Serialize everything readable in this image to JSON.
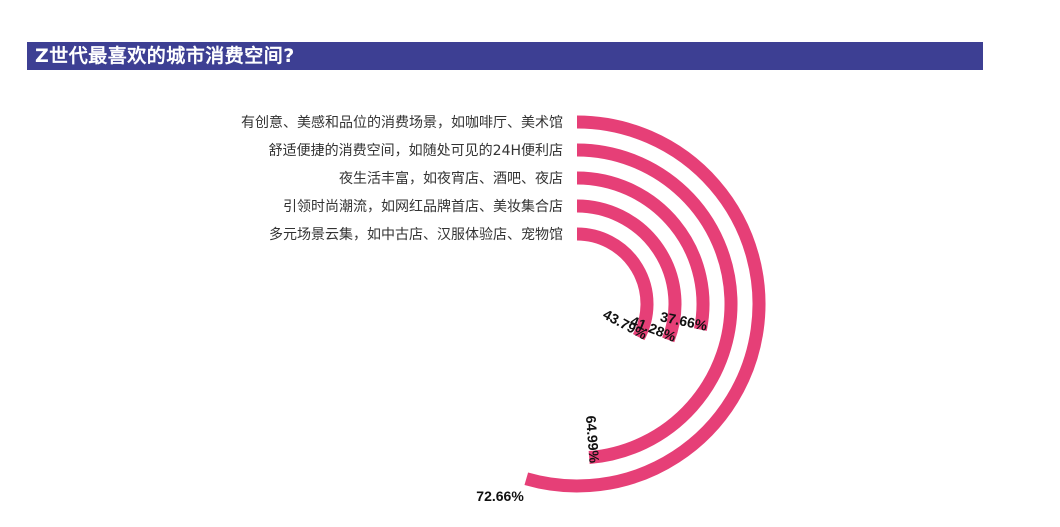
{
  "chart_data": {
    "type": "radial-bar",
    "title": "Z世代最喜欢的城市消费空间?",
    "categories": [
      "有创意、美感和品位的消费场景，如咖啡厅、美术馆",
      "舒适便捷的消费空间，如随处可见的24H便利店",
      "夜生活丰富，如夜宵店、酒吧、夜店",
      "引领时尚潮流，如网红品牌首店、美妆集合店",
      "多元场景云集，如中古店、汉服体验店、宠物馆"
    ],
    "values": [
      72.66,
      64.99,
      37.66,
      41.28,
      43.79
    ],
    "value_labels": [
      "72.66%",
      "64.99%",
      "37.66%",
      "41.28%",
      "43.79%"
    ],
    "max": 100,
    "color": "#e63f77"
  }
}
